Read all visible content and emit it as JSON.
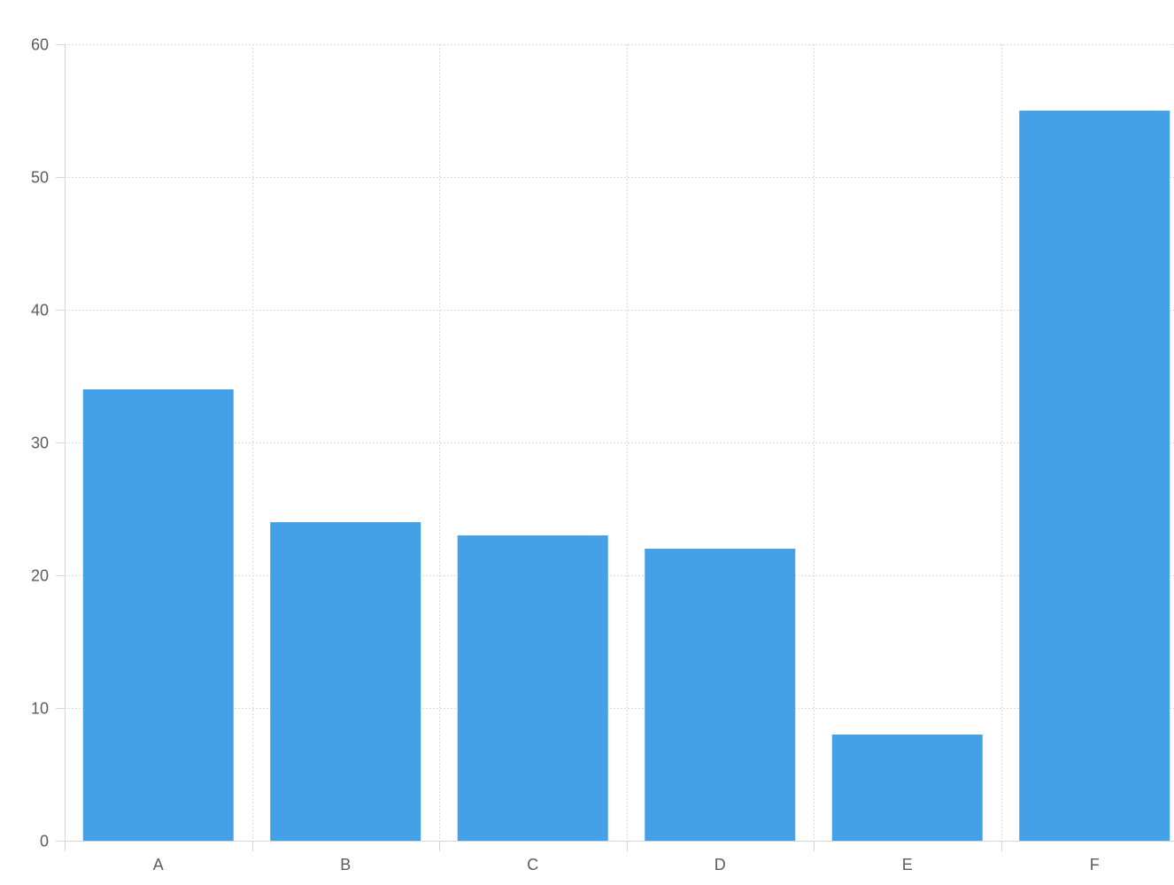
{
  "chart_data": {
    "type": "bar",
    "title": "",
    "xlabel": "",
    "ylabel": "",
    "categories": [
      "A",
      "B",
      "C",
      "D",
      "E",
      "F"
    ],
    "values": [
      34,
      24,
      23,
      22,
      8,
      55
    ],
    "ylim": [
      0,
      60
    ],
    "yticks": [
      0,
      10,
      20,
      30,
      40,
      50,
      60
    ],
    "grid": true,
    "legend": "none",
    "colors": {
      "bar": "#44a1e8",
      "grid": "#dcdcdc",
      "axis": "#d6d6d6",
      "tick_text": "#5b5b5b",
      "background": "#ffffff"
    }
  }
}
